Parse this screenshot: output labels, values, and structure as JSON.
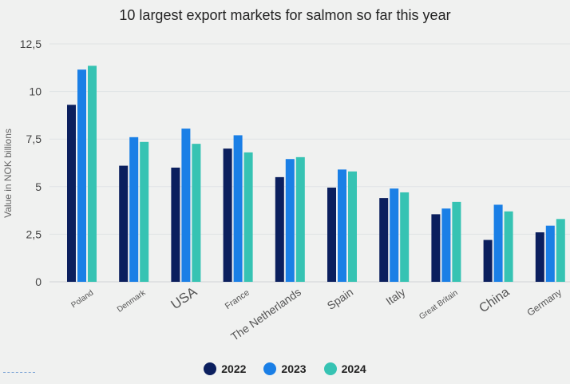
{
  "chart_data": {
    "type": "bar",
    "title": "10 largest export markets for salmon so far this year",
    "ylabel": "Value in NOK billions",
    "xlabel": "",
    "ylim": [
      0,
      12.5
    ],
    "y_ticks": [
      "0",
      "2,5",
      "5",
      "7,5",
      "10",
      "12,5"
    ],
    "grid": true,
    "legend_placement": "bottom-center",
    "categories": [
      "Poland",
      "Denmark",
      "USA",
      "France",
      "The Netherlands",
      "Spain",
      "Italy",
      "Great Britain",
      "China",
      "Germany"
    ],
    "series": [
      {
        "name": "2022",
        "color": "#0b1f5e",
        "values": [
          9.3,
          6.1,
          6.0,
          7.0,
          5.5,
          4.95,
          4.4,
          3.55,
          2.2,
          2.6
        ]
      },
      {
        "name": "2023",
        "color": "#1a7fe6",
        "values": [
          11.15,
          7.6,
          8.05,
          7.7,
          6.45,
          5.9,
          4.9,
          3.85,
          4.05,
          2.95
        ]
      },
      {
        "name": "2024",
        "color": "#36c3b3",
        "values": [
          11.35,
          7.35,
          7.25,
          6.8,
          6.55,
          5.8,
          4.7,
          4.2,
          3.7,
          3.3
        ]
      }
    ]
  }
}
